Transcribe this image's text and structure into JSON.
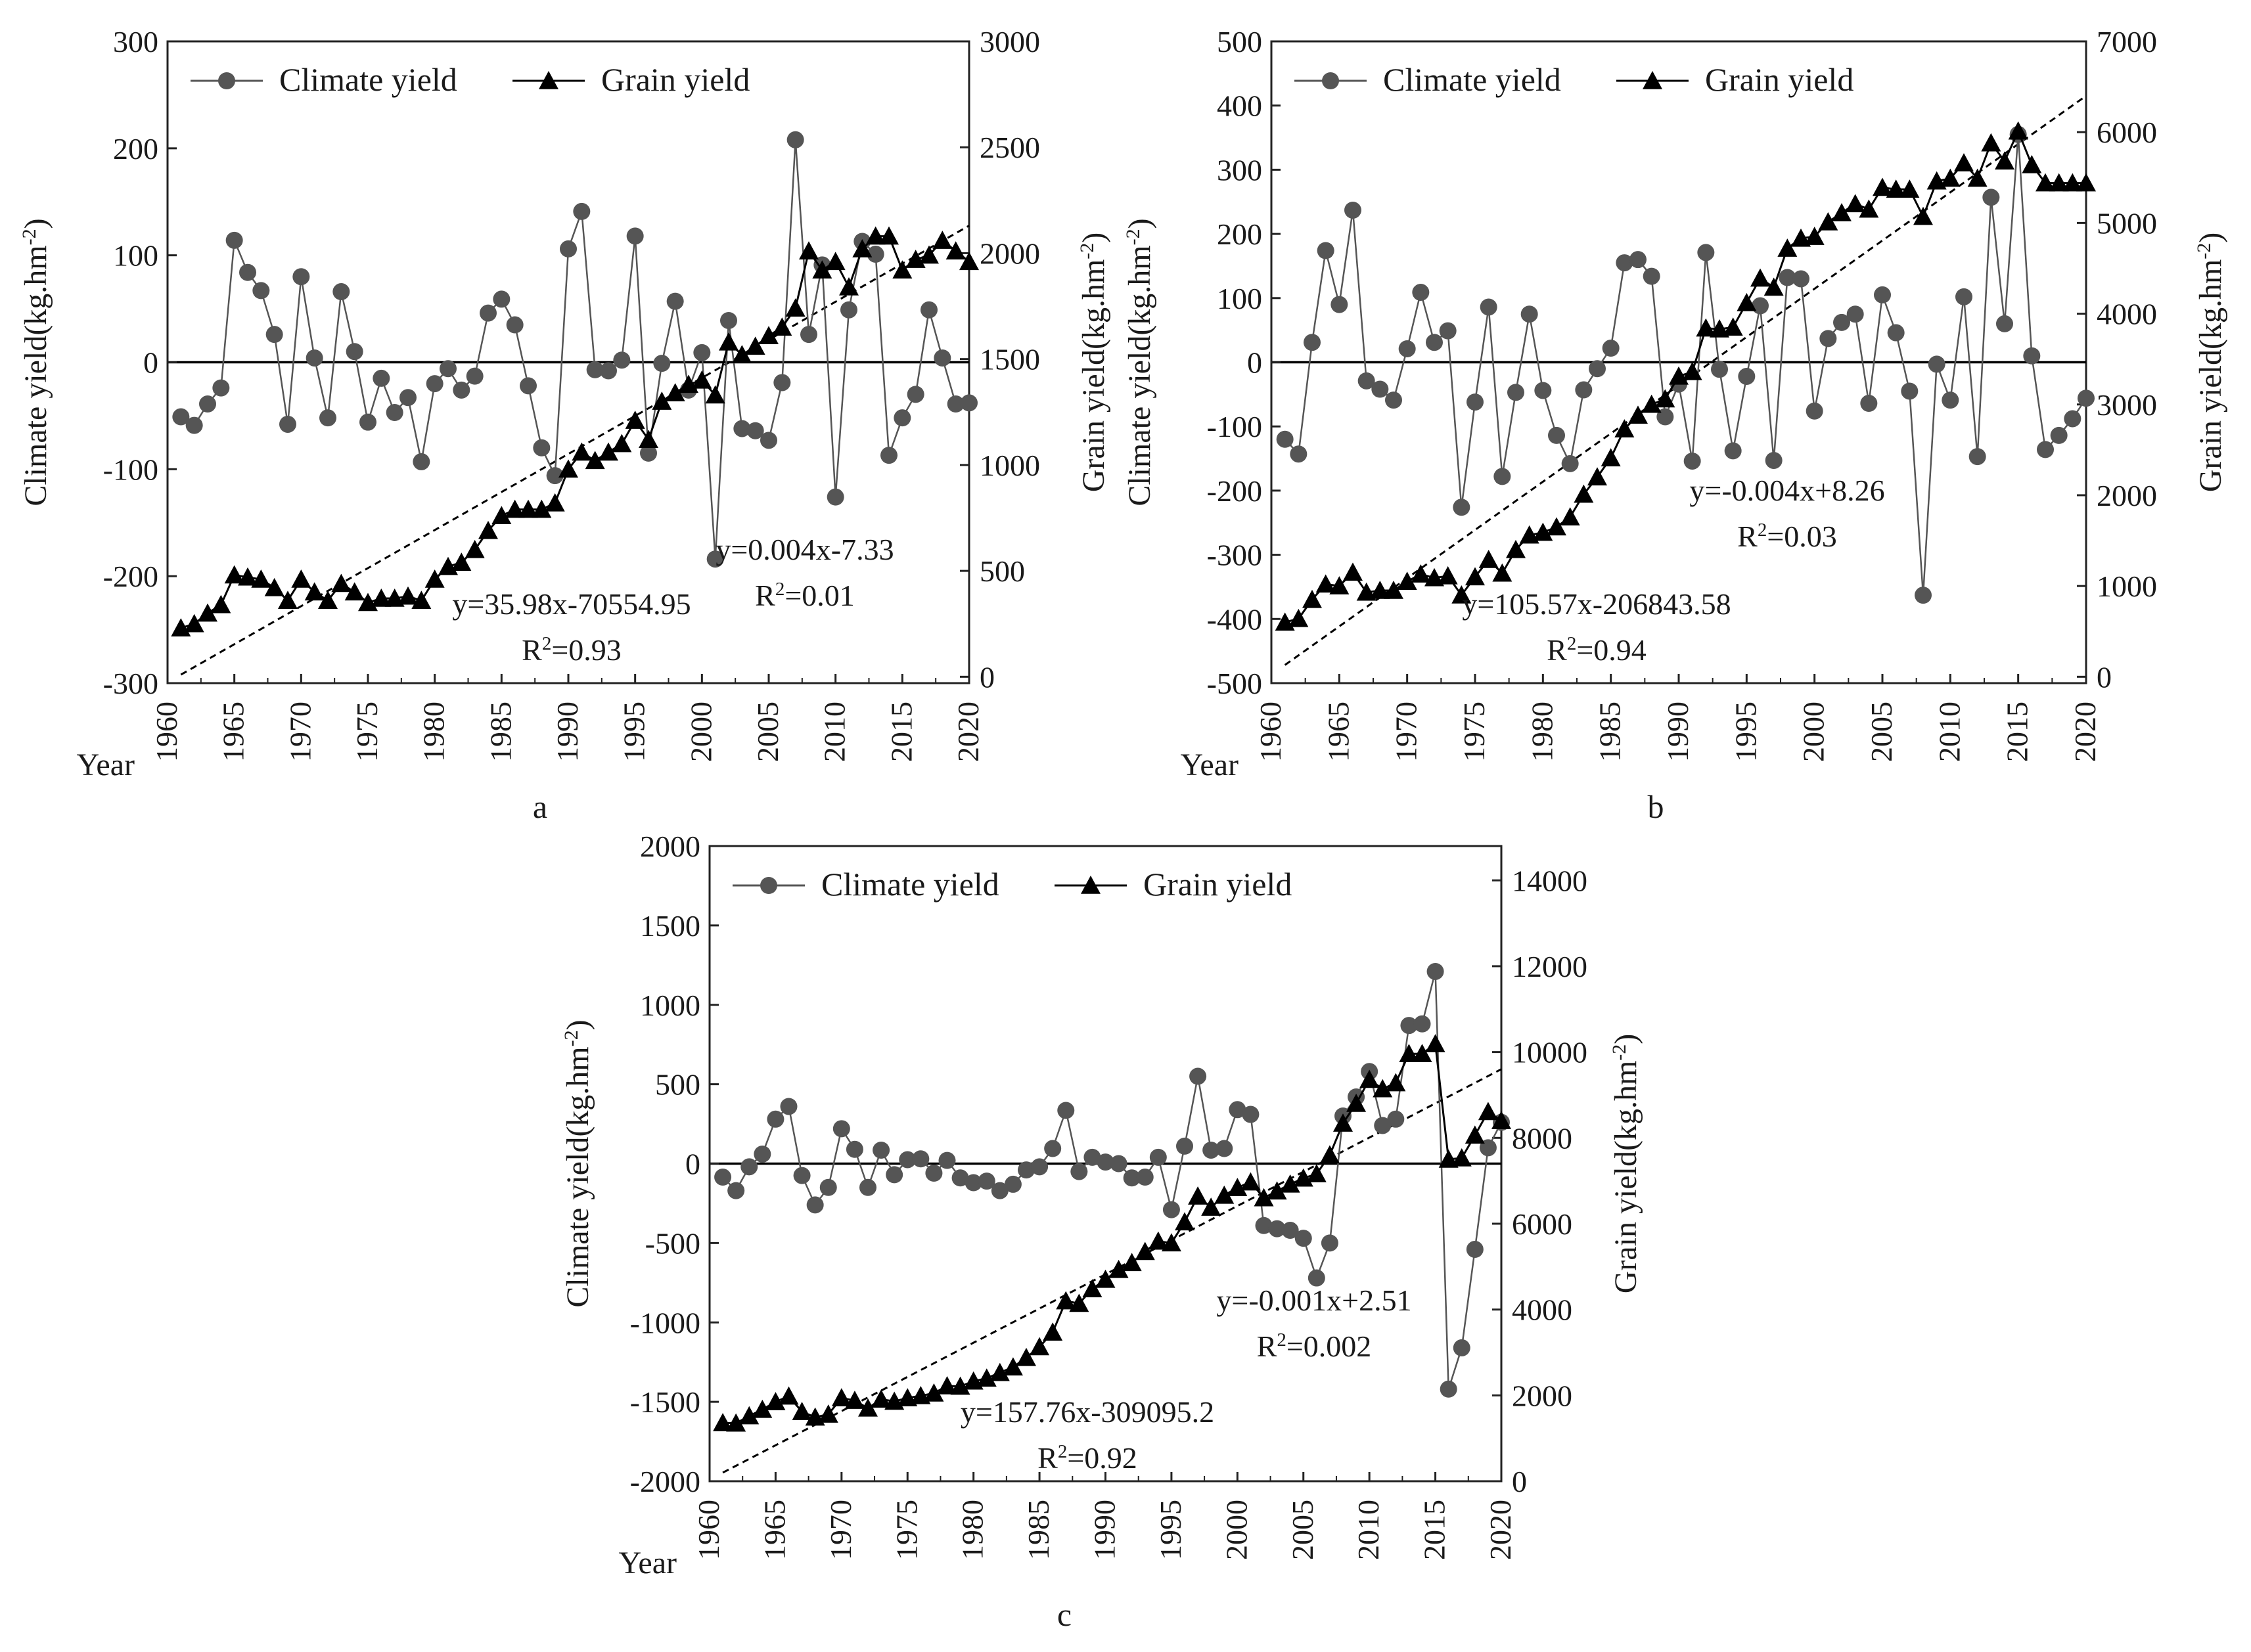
{
  "chart_data": [
    {
      "panel_label": "a",
      "type": "line",
      "xlabel": "Year",
      "ylabel_left": "Climate yield(kg.hm",
      "ylabel_right": "Grain yield(kg.hm",
      "ylabel_suffix": ")",
      "ylabel_exponent": "-2",
      "x_ticks": [
        "1960",
        "1965",
        "1970",
        "1975",
        "1980",
        "1985",
        "1990",
        "1995",
        "2000",
        "2005",
        "2010",
        "2015",
        "2020"
      ],
      "xlim": [
        1960,
        2020
      ],
      "ylim_left": [
        -300,
        300
      ],
      "yticks_left": [
        "-300",
        "-200",
        "-100",
        "0",
        "100",
        "200",
        "300"
      ],
      "ylim_right": [
        -30,
        3000
      ],
      "yticks_right": [
        "0",
        "500",
        "1000",
        "1500",
        "2000",
        "2500",
        "3000"
      ],
      "legend": [
        "Climate yield",
        "Grain yield"
      ],
      "x": [
        1961,
        1962,
        1963,
        1964,
        1965,
        1966,
        1967,
        1968,
        1969,
        1970,
        1971,
        1972,
        1973,
        1974,
        1975,
        1976,
        1977,
        1978,
        1979,
        1980,
        1981,
        1982,
        1983,
        1984,
        1985,
        1986,
        1987,
        1988,
        1989,
        1990,
        1991,
        1992,
        1993,
        1994,
        1995,
        1996,
        1997,
        1998,
        1999,
        2000,
        2001,
        2002,
        2003,
        2004,
        2005,
        2006,
        2007,
        2008,
        2009,
        2010,
        2011,
        2012,
        2013,
        2014,
        2015,
        2016,
        2017,
        2018,
        2019,
        2020
      ],
      "series": [
        {
          "name": "Climate yield",
          "axis": "left",
          "marker": "circle",
          "values": [
            -51,
            -59,
            -39,
            -24,
            114,
            84,
            67,
            26,
            -58,
            80,
            4,
            -52,
            66,
            10,
            -56,
            -15,
            -47,
            -33,
            -93,
            -20,
            -6,
            -26,
            -13,
            46,
            59,
            35,
            -22,
            -80,
            -106,
            106,
            141,
            -7,
            -8,
            2,
            118,
            -85,
            -1,
            57,
            -26,
            9,
            -184,
            39,
            -62,
            -64,
            -73,
            -19,
            208,
            26,
            91,
            -126,
            49,
            113,
            101,
            -87,
            -52,
            -30,
            49,
            4,
            -39,
            -38
          ]
        },
        {
          "name": "Grain yield",
          "axis": "right",
          "marker": "triangle",
          "values": [
            230,
            250,
            300,
            340,
            480,
            470,
            460,
            420,
            360,
            460,
            400,
            360,
            440,
            400,
            350,
            370,
            370,
            380,
            360,
            460,
            520,
            540,
            600,
            690,
            760,
            790,
            790,
            790,
            820,
            980,
            1060,
            1020,
            1060,
            1100,
            1210,
            1120,
            1300,
            1340,
            1380,
            1400,
            1330,
            1580,
            1520,
            1560,
            1610,
            1650,
            1740,
            2010,
            1920,
            1960,
            1840,
            2020,
            2080,
            2080,
            1920,
            1970,
            1990,
            2060,
            2010,
            1960
          ]
        }
      ],
      "trendlines": [
        {
          "series": "Grain yield",
          "equation": "y=35.98x-70554.95",
          "r2_label": "R",
          "r2_exponent": "2",
          "r2_value": "=0.93",
          "x_range": [
            1961,
            2020
          ],
          "y_range": [
            10,
            2130
          ]
        }
      ],
      "annotations": [
        {
          "equation": "y=0.004x-7.33",
          "r2_label": "R",
          "r2_exponent": "2",
          "r2_value": "=0.01"
        }
      ]
    },
    {
      "panel_label": "b",
      "type": "line",
      "xlabel": "Year",
      "ylabel_left": "Climate yield(kg.hm",
      "ylabel_right": "Grain yield(kg.hm",
      "ylabel_suffix": ")",
      "ylabel_exponent": "-2",
      "x_ticks": [
        "1960",
        "1965",
        "1970",
        "1975",
        "1980",
        "1985",
        "1990",
        "1995",
        "2000",
        "2005",
        "2010",
        "2015",
        "2020"
      ],
      "xlim": [
        1960,
        2020
      ],
      "ylim_left": [
        -500,
        500
      ],
      "yticks_left": [
        "-500",
        "-400",
        "-300",
        "-200",
        "-100",
        "0",
        "100",
        "200",
        "300",
        "400",
        "500"
      ],
      "ylim_right": [
        -70,
        7000
      ],
      "yticks_right": [
        "0",
        "1000",
        "2000",
        "3000",
        "4000",
        "5000",
        "6000",
        "7000"
      ],
      "legend": [
        "Climate yield",
        "Grain yield"
      ],
      "x": [
        1961,
        1962,
        1963,
        1964,
        1965,
        1966,
        1967,
        1968,
        1969,
        1970,
        1971,
        1972,
        1973,
        1974,
        1975,
        1976,
        1977,
        1978,
        1979,
        1980,
        1981,
        1982,
        1983,
        1984,
        1985,
        1986,
        1987,
        1988,
        1989,
        1990,
        1991,
        1992,
        1993,
        1994,
        1995,
        1996,
        1997,
        1998,
        1999,
        2000,
        2001,
        2002,
        2003,
        2004,
        2005,
        2006,
        2007,
        2008,
        2009,
        2010,
        2011,
        2012,
        2013,
        2014,
        2015,
        2016,
        2017,
        2018,
        2019,
        2020
      ],
      "series": [
        {
          "name": "Climate yield",
          "axis": "left",
          "marker": "circle",
          "values": [
            -120,
            -143,
            31,
            174,
            90,
            237,
            -29,
            -42,
            -59,
            21,
            109,
            31,
            49,
            -226,
            -62,
            86,
            -178,
            -47,
            75,
            -44,
            -114,
            -158,
            -43,
            -10,
            22,
            155,
            160,
            134,
            -85,
            -34,
            -154,
            171,
            -11,
            -138,
            -22,
            88,
            -153,
            132,
            130,
            -76,
            37,
            62,
            75,
            -64,
            105,
            46,
            -45,
            -363,
            -3,
            -59,
            102,
            -147,
            257,
            60,
            355,
            10,
            -136,
            -114,
            -88,
            -56
          ]
        },
        {
          "name": "Grain yield",
          "axis": "right",
          "marker": "triangle",
          "values": [
            600,
            640,
            850,
            1020,
            1000,
            1150,
            930,
            950,
            950,
            1050,
            1130,
            1090,
            1110,
            900,
            1100,
            1290,
            1140,
            1400,
            1560,
            1590,
            1650,
            1760,
            2010,
            2200,
            2410,
            2730,
            2880,
            3000,
            3060,
            3310,
            3360,
            3840,
            3830,
            3850,
            4120,
            4390,
            4290,
            4720,
            4830,
            4850,
            5010,
            5110,
            5210,
            5150,
            5390,
            5370,
            5370,
            5070,
            5460,
            5490,
            5660,
            5490,
            5880,
            5680,
            6010,
            5640,
            5440,
            5440,
            5440,
            5440
          ]
        }
      ],
      "trendlines": [
        {
          "series": "Grain yield",
          "equation": "y=105.57x-206843.58",
          "r2_label": "R",
          "r2_exponent": "2",
          "r2_value": "=0.94",
          "x_range": [
            1961,
            2020
          ],
          "y_range": [
            130,
            6400
          ]
        }
      ],
      "annotations": [
        {
          "equation": "y=-0.004x+8.26",
          "r2_label": "R",
          "r2_exponent": "2",
          "r2_value": "=0.03"
        }
      ]
    },
    {
      "panel_label": "c",
      "type": "line",
      "xlabel": "Year",
      "ylabel_left": "Climate yield(kg.hm",
      "ylabel_right": "Grain yield(kg.hm",
      "ylabel_suffix": ")",
      "ylabel_exponent": "-2",
      "x_ticks": [
        "1960",
        "1965",
        "1970",
        "1975",
        "1980",
        "1985",
        "1990",
        "1995",
        "2000",
        "2005",
        "2010",
        "2015",
        "2020"
      ],
      "xlim": [
        1960,
        2020
      ],
      "ylim_left": [
        -2000,
        2000
      ],
      "yticks_left": [
        "-2000",
        "-1500",
        "-1000",
        "-500",
        "0",
        "500",
        "1000",
        "1500",
        "2000"
      ],
      "ylim_right": [
        0,
        14800
      ],
      "yticks_right": [
        "0",
        "2000",
        "4000",
        "6000",
        "8000",
        "10000",
        "12000",
        "14000"
      ],
      "legend": [
        "Climate yield",
        "Grain yield"
      ],
      "x": [
        1961,
        1962,
        1963,
        1964,
        1965,
        1966,
        1967,
        1968,
        1969,
        1970,
        1971,
        1972,
        1973,
        1974,
        1975,
        1976,
        1977,
        1978,
        1979,
        1980,
        1981,
        1982,
        1983,
        1984,
        1985,
        1986,
        1987,
        1988,
        1989,
        1990,
        1991,
        1992,
        1993,
        1994,
        1995,
        1996,
        1997,
        1998,
        1999,
        2000,
        2001,
        2002,
        2003,
        2004,
        2005,
        2006,
        2007,
        2008,
        2009,
        2010,
        2011,
        2012,
        2013,
        2014,
        2015,
        2016,
        2017,
        2018,
        2019,
        2020
      ],
      "series": [
        {
          "name": "Climate yield",
          "axis": "left",
          "marker": "circle",
          "values": [
            -85,
            -170,
            -20,
            60,
            280,
            360,
            -75,
            -260,
            -150,
            220,
            90,
            -150,
            85,
            -70,
            25,
            30,
            -60,
            20,
            -90,
            -120,
            -110,
            -170,
            -130,
            -40,
            -20,
            95,
            335,
            -50,
            40,
            10,
            0,
            -90,
            -85,
            40,
            -290,
            110,
            550,
            85,
            95,
            340,
            310,
            -390,
            -410,
            -420,
            -470,
            -720,
            -500,
            300,
            420,
            580,
            240,
            280,
            870,
            880,
            1210,
            -1420,
            -1160,
            -540,
            100,
            260
          ]
        },
        {
          "name": "Grain yield",
          "axis": "right",
          "marker": "triangle",
          "values": [
            1360,
            1350,
            1520,
            1670,
            1850,
            1980,
            1620,
            1490,
            1560,
            1940,
            1880,
            1700,
            1910,
            1860,
            1940,
            1990,
            2050,
            2220,
            2210,
            2330,
            2400,
            2530,
            2660,
            2880,
            3130,
            3470,
            4200,
            4140,
            4480,
            4700,
            4930,
            5090,
            5350,
            5590,
            5550,
            6040,
            6640,
            6380,
            6660,
            6840,
            6970,
            6600,
            6760,
            6920,
            7060,
            7160,
            7600,
            8340,
            8800,
            9360,
            9140,
            9280,
            9960,
            9960,
            10190,
            7500,
            7530,
            8060,
            8610,
            8400
          ]
        }
      ],
      "trendlines": [
        {
          "series": "Grain yield",
          "equation": "y=157.76x-309095.2",
          "r2_label": "R",
          "r2_exponent": "2",
          "r2_value": "=0.92",
          "x_range": [
            1961,
            2020
          ],
          "y_range": [
            200,
            9600
          ]
        }
      ],
      "annotations": [
        {
          "equation": "y=-0.001x+2.51",
          "r2_label": "R",
          "r2_exponent": "2",
          "r2_value": "=0.002"
        }
      ]
    }
  ]
}
